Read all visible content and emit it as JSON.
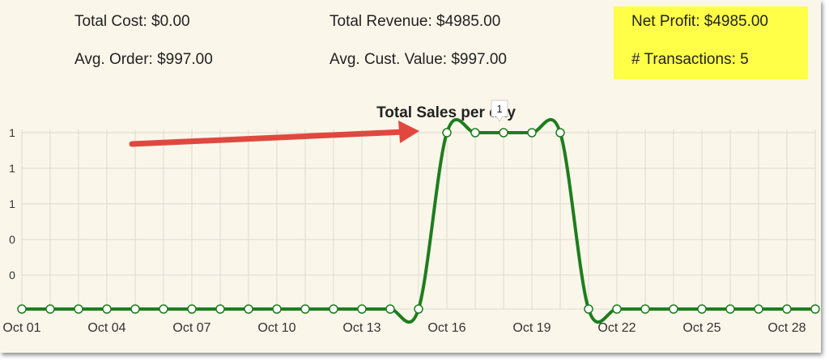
{
  "stats": {
    "total_cost": "Total Cost: $0.00",
    "avg_order": "Avg. Order: $997.00",
    "total_revenue": "Total Revenue: $4985.00",
    "avg_cust_value": "Avg. Cust. Value: $997.00",
    "net_profit": "Net Profit: $4985.00",
    "transactions": "# Transactions: 5"
  },
  "colors": {
    "line": "#1e7d1e",
    "arrow": "#e0483f",
    "highlight": "#ffff48",
    "background": "#fbf6ea"
  },
  "tooltip": {
    "value": "1"
  },
  "chart_data": {
    "type": "line",
    "title": "Total Sales per day",
    "xlabel": "",
    "ylabel": "",
    "x": [
      "Oct 01",
      "Oct 02",
      "Oct 03",
      "Oct 04",
      "Oct 05",
      "Oct 06",
      "Oct 07",
      "Oct 08",
      "Oct 09",
      "Oct 10",
      "Oct 11",
      "Oct 12",
      "Oct 13",
      "Oct 14",
      "Oct 15",
      "Oct 16",
      "Oct 17",
      "Oct 18",
      "Oct 19",
      "Oct 20",
      "Oct 21",
      "Oct 22",
      "Oct 23",
      "Oct 24",
      "Oct 25",
      "Oct 26",
      "Oct 27",
      "Oct 28",
      "Oct 29"
    ],
    "x_tick_labels": [
      "Oct 01",
      "Oct 04",
      "Oct 07",
      "Oct 10",
      "Oct 13",
      "Oct 16",
      "Oct 19",
      "Oct 22",
      "Oct 25",
      "Oct 28"
    ],
    "series": [
      {
        "values": [
          0,
          0,
          0,
          0,
          0,
          0,
          0,
          0,
          0,
          0,
          0,
          0,
          0,
          0,
          0,
          1,
          1,
          1,
          1,
          1,
          0,
          0,
          0,
          0,
          0,
          0,
          0,
          0,
          0
        ]
      }
    ],
    "y_tick_labels": [
      "0",
      "0",
      "1",
      "1",
      "1"
    ],
    "ylim": [
      0,
      1
    ],
    "grid": true,
    "smooth": true,
    "annotation": "arrow pointing to Oct 16 rise"
  }
}
